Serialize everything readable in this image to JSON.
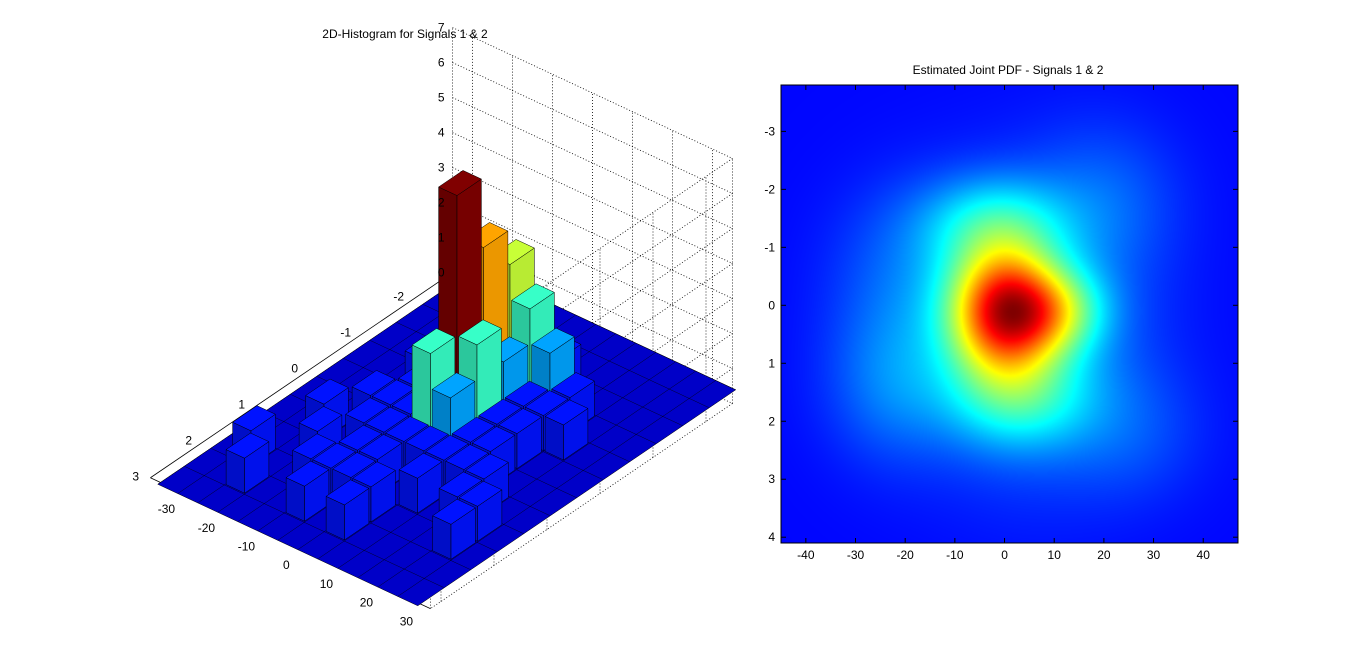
{
  "chart_data": [
    {
      "type": "bar3d",
      "title": "2D-Histogram for Signals 1 & 2",
      "xlabel": "",
      "ylabel": "",
      "zlabel": "",
      "x_ticks": [
        "-30",
        "-20",
        "-10",
        "0",
        "10",
        "20",
        "30"
      ],
      "y_ticks": [
        "-2",
        "-1",
        "0",
        "1",
        "2",
        "3"
      ],
      "z_ticks": [
        "0",
        "1",
        "2",
        "3",
        "4",
        "5",
        "6",
        "7"
      ],
      "xlim": [
        -35,
        35
      ],
      "ylim": [
        -2.5,
        3.2
      ],
      "zlim": [
        0,
        7
      ],
      "colormap": "jet",
      "grid": true,
      "x_centers": [
        -30,
        -25,
        -20,
        -15,
        -10,
        -5,
        0,
        5,
        10,
        15,
        20,
        25,
        30
      ],
      "y_centers": [
        -2.5,
        -2,
        -1.5,
        -1,
        -0.5,
        0,
        0.5,
        1,
        1.5,
        2,
        2.5,
        3
      ],
      "counts": [
        [
          0,
          0,
          0,
          0,
          0,
          0,
          0,
          0,
          0,
          0,
          0,
          0,
          0
        ],
        [
          0,
          0,
          0,
          0,
          0,
          0,
          0,
          0,
          0,
          0,
          0,
          0,
          0
        ],
        [
          0,
          0,
          0,
          0,
          0,
          0,
          0,
          1,
          0,
          0,
          0,
          0,
          0
        ],
        [
          0,
          0,
          0,
          0,
          0,
          0,
          4,
          3,
          2,
          1,
          0,
          0,
          0
        ],
        [
          0,
          0,
          0,
          1,
          1,
          1,
          5,
          2,
          1,
          1,
          1,
          0,
          0
        ],
        [
          0,
          0,
          0,
          0,
          1,
          2,
          7,
          3,
          1,
          1,
          0,
          0,
          0
        ],
        [
          0,
          0,
          0,
          1,
          1,
          1,
          3,
          2,
          1,
          1,
          0,
          0,
          0
        ],
        [
          0,
          0,
          1,
          0,
          1,
          1,
          1,
          1,
          1,
          1,
          1,
          0,
          0
        ],
        [
          0,
          0,
          0,
          1,
          0,
          1,
          1,
          0,
          1,
          0,
          1,
          1,
          0
        ],
        [
          0,
          1,
          0,
          0,
          1,
          1,
          1,
          1,
          0,
          0,
          0,
          1,
          0
        ],
        [
          0,
          0,
          1,
          0,
          0,
          1,
          0,
          1,
          0,
          0,
          0,
          0,
          0
        ],
        [
          0,
          0,
          0,
          0,
          0,
          0,
          0,
          0,
          0,
          0,
          0,
          0,
          0
        ]
      ]
    },
    {
      "type": "heatmap",
      "title": "Estimated Joint PDF - Signals 1 & 2",
      "xlabel": "",
      "ylabel": "",
      "x_ticks": [
        -40,
        -30,
        -20,
        -10,
        0,
        10,
        20,
        30,
        40
      ],
      "y_ticks": [
        -3,
        -2,
        -1,
        0,
        1,
        2,
        3,
        4
      ],
      "xlim": [
        -45,
        47
      ],
      "ylim": [
        -3.8,
        4.1
      ],
      "y_direction": "reverse",
      "colormap": "jet",
      "peak": {
        "x": 0,
        "y": 0.1
      }
    }
  ]
}
